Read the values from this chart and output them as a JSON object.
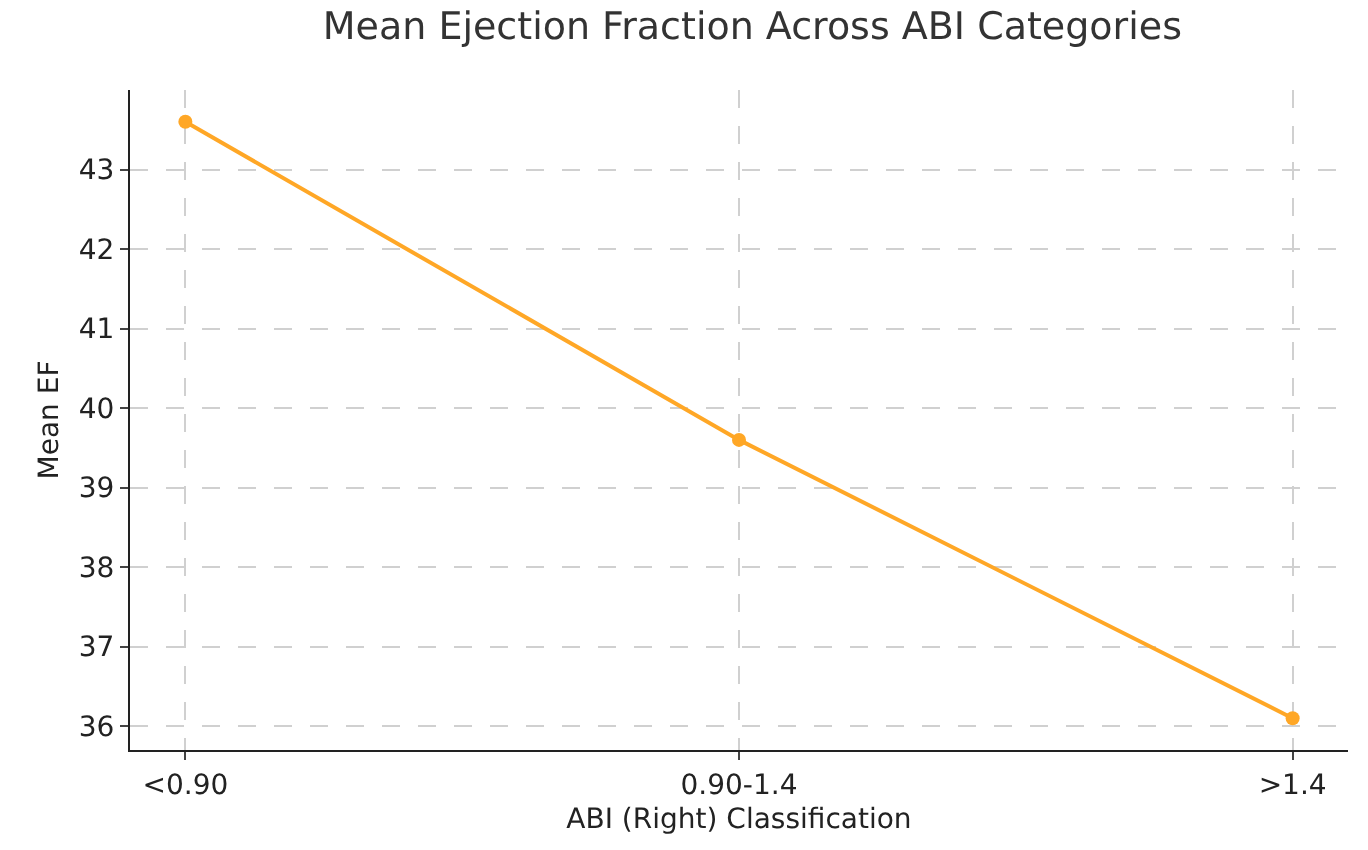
{
  "chart_data": {
    "type": "line",
    "title": "Mean Ejection Fraction Across ABI Categories",
    "xlabel": "ABI (Right) Classification",
    "ylabel": "Mean EF",
    "categories": [
      "<0.90",
      "0.90-1.4",
      ">1.4"
    ],
    "series": [
      {
        "color": "#ffa726",
        "values": [
          43.6,
          39.6,
          36.1
        ]
      }
    ],
    "ylim": [
      35.7,
      44.0
    ],
    "yticks": [
      36,
      37,
      38,
      39,
      40,
      41,
      42,
      43
    ],
    "grid": true,
    "marker": "circle",
    "line_style": "solid"
  }
}
